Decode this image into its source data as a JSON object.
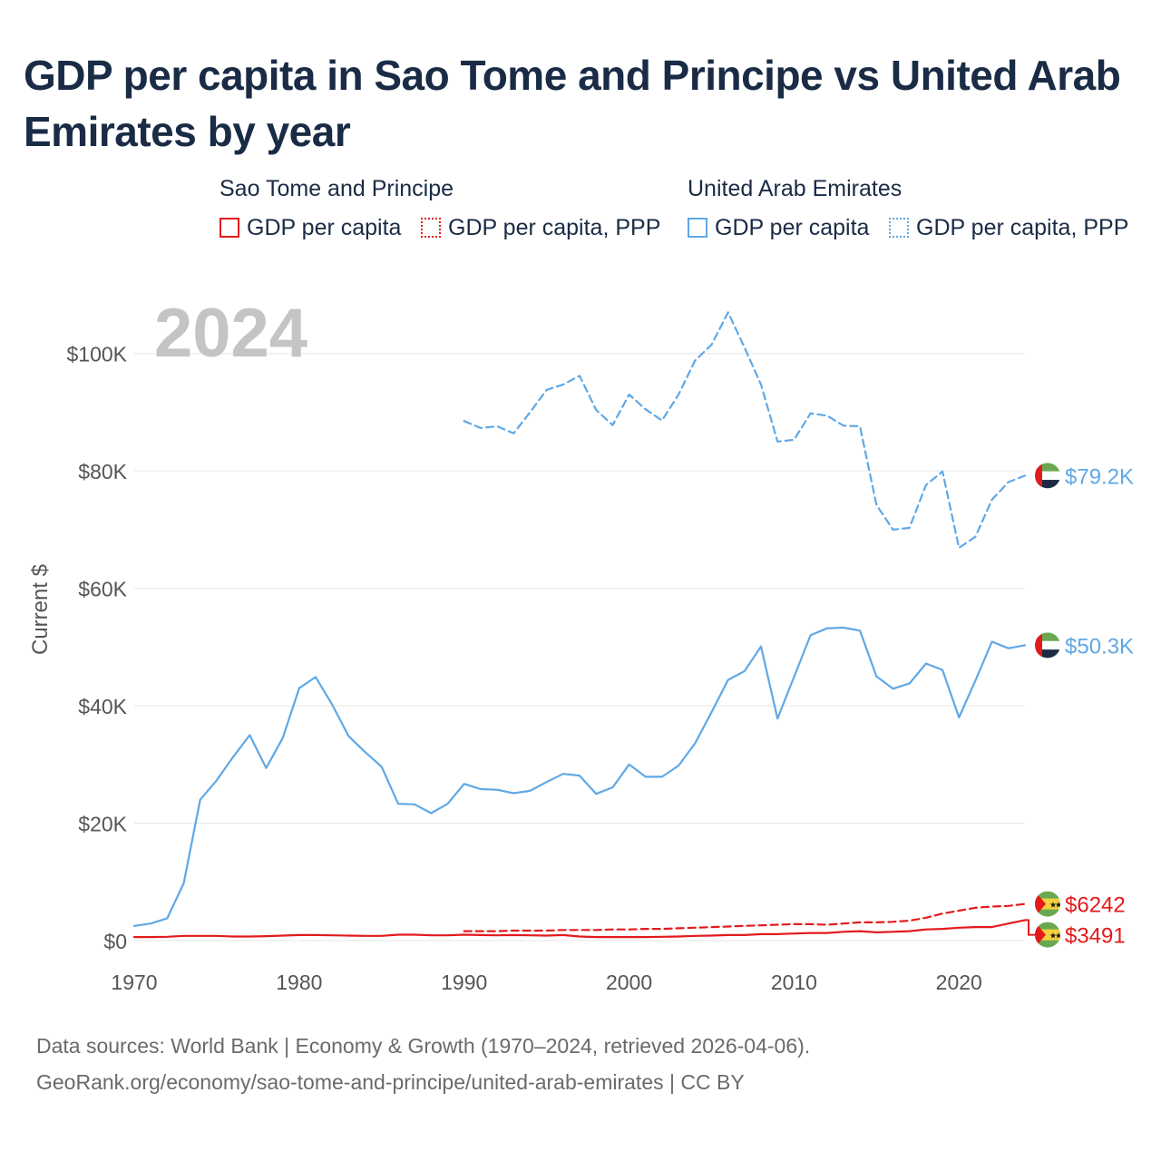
{
  "title": "GDP per capita in Sao Tome and Principe vs United Arab Emirates by year",
  "legend": {
    "groups": [
      {
        "name": "Sao Tome and Principe",
        "items": [
          "GDP per capita",
          "GDP per capita, PPP"
        ]
      },
      {
        "name": "United Arab Emirates",
        "items": [
          "GDP per capita",
          "GDP per capita, PPP"
        ]
      }
    ]
  },
  "year_watermark": "2024",
  "source": {
    "line1": "Data sources: World Bank | Economy & Growth (1970–2024, retrieved 2026-04-06).",
    "line2": "GeoRank.org/economy/sao-tome-and-principe/united-arab-emirates | CC BY"
  },
  "colors": {
    "stp": "#e31a1c",
    "uae": "#5fa8e6",
    "title": "#1a2b45",
    "grid": "#e6e6e6",
    "axis_text": "#555555",
    "watermark": "#c4c4c4"
  },
  "chart_data": {
    "type": "line",
    "title": "GDP per capita in Sao Tome and Principe vs United Arab Emirates by year",
    "xlabel": "",
    "ylabel": "Current $",
    "xlim": [
      1970,
      2024
    ],
    "ylim": [
      0,
      110000
    ],
    "x_ticks": [
      1970,
      1980,
      1990,
      2000,
      2010,
      2020
    ],
    "x_tick_labels": [
      "1970",
      "1980",
      "1990",
      "2000",
      "2010",
      "2020"
    ],
    "y_ticks": [
      0,
      20000,
      40000,
      60000,
      80000,
      100000
    ],
    "y_tick_labels": [
      "$0",
      "$20K",
      "$40K",
      "$60K",
      "$80K",
      "$100K"
    ],
    "grid": true,
    "series": [
      {
        "name": "United Arab Emirates — GDP per capita, PPP",
        "country": "uae",
        "style": "dashed",
        "end_label": "$79.2K",
        "x": [
          1990,
          1991,
          1992,
          1993,
          1994,
          1995,
          1996,
          1997,
          1998,
          1999,
          2000,
          2001,
          2002,
          2003,
          2004,
          2005,
          2006,
          2007,
          2008,
          2009,
          2010,
          2011,
          2012,
          2013,
          2014,
          2015,
          2016,
          2017,
          2018,
          2019,
          2020,
          2021,
          2022,
          2023,
          2024
        ],
        "values": [
          88500,
          87300,
          87600,
          86400,
          90000,
          93800,
          94700,
          96200,
          90400,
          87800,
          93000,
          90500,
          88600,
          93000,
          98800,
          101500,
          107000,
          101000,
          94700,
          85000,
          85300,
          89800,
          89400,
          87700,
          87600,
          74200,
          70000,
          70300,
          77600,
          79900,
          66900,
          68800,
          75100,
          78100,
          79200
        ]
      },
      {
        "name": "United Arab Emirates — GDP per capita",
        "country": "uae",
        "style": "solid",
        "end_label": "$50.3K",
        "x": [
          1970,
          1971,
          1972,
          1973,
          1974,
          1975,
          1976,
          1977,
          1978,
          1979,
          1980,
          1981,
          1982,
          1983,
          1984,
          1985,
          1986,
          1987,
          1988,
          1989,
          1990,
          1991,
          1992,
          1993,
          1994,
          1995,
          1996,
          1997,
          1998,
          1999,
          2000,
          2001,
          2002,
          2003,
          2004,
          2005,
          2006,
          2007,
          2008,
          2009,
          2010,
          2011,
          2012,
          2013,
          2014,
          2015,
          2016,
          2017,
          2018,
          2019,
          2020,
          2021,
          2022,
          2023,
          2024
        ],
        "values": [
          2500,
          2900,
          3800,
          9800,
          24000,
          27300,
          31300,
          35000,
          29400,
          34500,
          43000,
          44900,
          40200,
          34800,
          32100,
          29600,
          23300,
          23200,
          21700,
          23300,
          26700,
          25800,
          25700,
          25100,
          25500,
          27000,
          28400,
          28100,
          25000,
          26100,
          30000,
          27900,
          27900,
          29800,
          33600,
          38900,
          44400,
          45900,
          50100,
          37800,
          44900,
          52000,
          53200,
          53300,
          52800,
          45000,
          42900,
          43800,
          47200,
          46100,
          38000,
          44300,
          50900,
          49800,
          50300
        ]
      },
      {
        "name": "Sao Tome and Principe — GDP per capita, PPP",
        "country": "stp",
        "style": "dashed",
        "end_label": "$6242",
        "x": [
          1990,
          1991,
          1992,
          1993,
          1994,
          1995,
          1996,
          1997,
          1998,
          1999,
          2000,
          2001,
          2002,
          2003,
          2004,
          2005,
          2006,
          2007,
          2008,
          2009,
          2010,
          2011,
          2012,
          2013,
          2014,
          2015,
          2016,
          2017,
          2018,
          2019,
          2020,
          2021,
          2022,
          2023,
          2024
        ],
        "values": [
          1600,
          1600,
          1600,
          1700,
          1700,
          1700,
          1800,
          1800,
          1800,
          1900,
          1900,
          2000,
          2000,
          2100,
          2200,
          2300,
          2400,
          2500,
          2600,
          2700,
          2800,
          2800,
          2700,
          2900,
          3100,
          3100,
          3200,
          3400,
          3900,
          4600,
          5100,
          5600,
          5800,
          5900,
          6242
        ]
      },
      {
        "name": "Sao Tome and Principe — GDP per capita",
        "country": "stp",
        "style": "solid",
        "end_label": "$3491",
        "x": [
          1970,
          1971,
          1972,
          1973,
          1974,
          1975,
          1976,
          1977,
          1978,
          1979,
          1980,
          1981,
          1982,
          1983,
          1984,
          1985,
          1986,
          1987,
          1988,
          1989,
          1990,
          1991,
          1992,
          1993,
          1994,
          1995,
          1996,
          1997,
          1998,
          1999,
          2000,
          2001,
          2002,
          2003,
          2004,
          2005,
          2006,
          2007,
          2008,
          2009,
          2010,
          2011,
          2012,
          2013,
          2014,
          2015,
          2016,
          2017,
          2018,
          2019,
          2020,
          2021,
          2022,
          2023,
          2024
        ],
        "values": [
          600,
          600,
          650,
          800,
          800,
          800,
          700,
          700,
          750,
          850,
          950,
          950,
          900,
          850,
          800,
          800,
          1000,
          1000,
          900,
          900,
          1000,
          950,
          900,
          950,
          900,
          850,
          950,
          700,
          600,
          600,
          600,
          600,
          650,
          700,
          800,
          850,
          950,
          950,
          1100,
          1100,
          1200,
          1300,
          1300,
          1500,
          1600,
          1400,
          1500,
          1600,
          1900,
          2000,
          2200,
          2300,
          2300,
          2900,
          3491
        ]
      }
    ]
  }
}
